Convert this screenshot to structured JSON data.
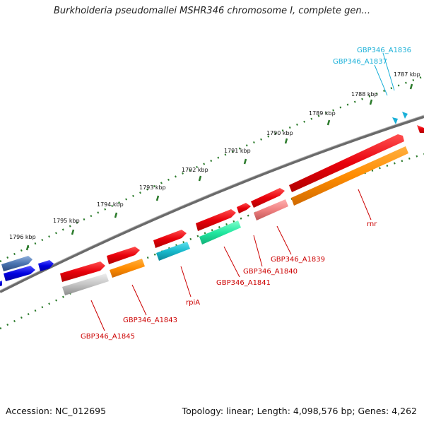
{
  "title": "Burkholderia pseudomallei MSHR346 chromosome I, complete gen...",
  "footer": {
    "accession": "Accession: NC_012695",
    "summary": "Topology: linear; Length: 4,098,576 bp; Genes: 4,262"
  },
  "scale": {
    "ticks": [
      "1787 kbp",
      "1788 kbp",
      "1789 kbp",
      "1790 kbp",
      "1791 kbp",
      "1792 kbp",
      "1793 kbp",
      "1794 kbp",
      "1795 kbp",
      "1796 kbp"
    ]
  },
  "gene_labels": {
    "a1836": "GBP346_A1836",
    "a1837": "GBP346_A1837",
    "rnr": "rnr",
    "a1839": "GBP346_A1839",
    "a1840": "GBP346_A1840",
    "a1841": "GBP346_A1841",
    "rpia": "rpiA",
    "a1843": "GBP346_A1843",
    "a1845": "GBP346_A1845"
  },
  "colors": {
    "gene": "#e8000b",
    "cds_orange": "#ff8c00",
    "cds_cyan": "#17b9cc",
    "cds_green": "#22e8a0",
    "cds_pink": "#f08080",
    "cds_gray": "#b8b8b8",
    "gene_blue": "#0000e0",
    "gene_steelblue": "#4a74b0",
    "backbone": "#777777",
    "ticks": "#2a7a2a",
    "label_red": "#cc0000",
    "label_cyan": "#1ab0d8"
  }
}
